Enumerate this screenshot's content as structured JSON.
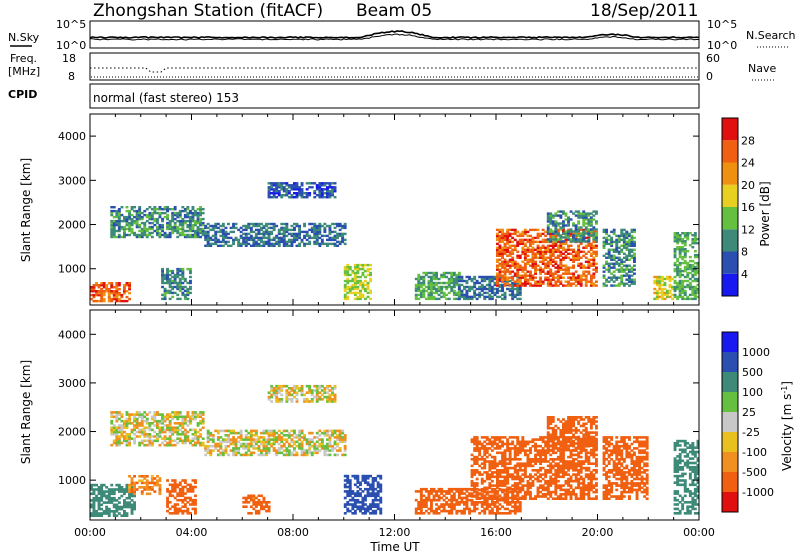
{
  "header": {
    "title": "Zhongshan Station (fitACF)",
    "beam": "Beam 05",
    "date": "18/Sep/2011"
  },
  "noise_panel": {
    "left_label": "N.Sky",
    "right_label": "N.Search",
    "left_ticks": [
      "10^5",
      "10^0"
    ],
    "right_ticks": [
      "10^5",
      "10^0"
    ]
  },
  "freq_panel": {
    "left_label_1": "Freq.",
    "left_label_2": "[MHz]",
    "right_label": "Nave",
    "left_ticks": [
      "18",
      "8"
    ],
    "right_ticks": [
      "60",
      "0"
    ]
  },
  "cpid": {
    "label": "CPID",
    "text": "normal (fast stereo) 153"
  },
  "colors": {
    "power": [
      "#1818f0",
      "#2a4fb0",
      "#3d8a78",
      "#66c040",
      "#e8d020",
      "#f09010",
      "#f06010",
      "#e01010"
    ],
    "velocity": [
      "#e01010",
      "#f06010",
      "#f09020",
      "#e8c020",
      "#c8c8c8",
      "#66c040",
      "#3d8a78",
      "#2a4fb0",
      "#1818f0"
    ]
  },
  "chart_data": [
    {
      "type": "heatmap",
      "name": "power",
      "xlabel": "Time UT",
      "ylabel": "Slant Range [km]",
      "x_range": [
        "00:00",
        "24:00"
      ],
      "ylim": [
        180,
        4500
      ],
      "yticks": [
        1000,
        2000,
        3000,
        4000
      ],
      "xticks": [
        "00:00",
        "04:00",
        "08:00",
        "12:00",
        "16:00",
        "20:00",
        "00:00"
      ],
      "colorbar": {
        "label": "Power [dB]",
        "ticks": [
          4,
          8,
          12,
          16,
          20,
          24,
          28
        ],
        "range": [
          0,
          32
        ]
      },
      "regions": [
        {
          "t0": 0.0,
          "t1": 1.6,
          "r0": 250,
          "r1": 700,
          "power": 26
        },
        {
          "t0": 0.8,
          "t1": 4.5,
          "r0": 1700,
          "r1": 2400,
          "power": 10
        },
        {
          "t0": 4.5,
          "t1": 10.0,
          "r0": 1500,
          "r1": 2000,
          "power": 8
        },
        {
          "t0": 7.0,
          "t1": 9.6,
          "r0": 2600,
          "r1": 2950,
          "power": 6
        },
        {
          "t0": 2.8,
          "t1": 4.0,
          "r0": 300,
          "r1": 1000,
          "power": 10
        },
        {
          "t0": 10.0,
          "t1": 11.0,
          "r0": 300,
          "r1": 1100,
          "power": 16
        },
        {
          "t0": 12.8,
          "t1": 14.5,
          "r0": 300,
          "r1": 900,
          "power": 12
        },
        {
          "t0": 14.5,
          "t1": 17.0,
          "r0": 300,
          "r1": 800,
          "power": 8
        },
        {
          "t0": 16.0,
          "t1": 20.0,
          "r0": 600,
          "r1": 1900,
          "power": 26
        },
        {
          "t0": 18.0,
          "t1": 20.0,
          "r0": 1600,
          "r1": 2300,
          "power": 10
        },
        {
          "t0": 20.2,
          "t1": 21.5,
          "r0": 600,
          "r1": 1900,
          "power": 10
        },
        {
          "t0": 22.2,
          "t1": 23.0,
          "r0": 300,
          "r1": 800,
          "power": 18
        },
        {
          "t0": 23.0,
          "t1": 24.0,
          "r0": 300,
          "r1": 1800,
          "power": 12
        }
      ]
    },
    {
      "type": "heatmap",
      "name": "velocity",
      "xlabel": "Time UT",
      "ylabel": "Slant Range [km]",
      "x_range": [
        "00:00",
        "24:00"
      ],
      "ylim": [
        180,
        4500
      ],
      "yticks": [
        1000,
        2000,
        3000,
        4000
      ],
      "xticks": [
        "00:00",
        "04:00",
        "08:00",
        "12:00",
        "16:00",
        "20:00",
        "00:00"
      ],
      "colorbar": {
        "label": "Velocity [m s",
        "label_exp": "-1",
        "label_end": "]",
        "ticks": [
          1000,
          500,
          100,
          25,
          -25,
          -100,
          -500,
          -1000
        ]
      },
      "regions": [
        {
          "t0": 0.0,
          "t1": 1.8,
          "r0": 250,
          "r1": 900,
          "velocity": 200
        },
        {
          "t0": 0.8,
          "t1": 4.5,
          "r0": 1700,
          "r1": 2400,
          "velocity": 0
        },
        {
          "t0": 4.5,
          "t1": 10.0,
          "r0": 1500,
          "r1": 2000,
          "velocity": 0
        },
        {
          "t0": 7.0,
          "t1": 9.6,
          "r0": 2600,
          "r1": 2950,
          "velocity": 0
        },
        {
          "t0": 1.5,
          "t1": 2.8,
          "r0": 700,
          "r1": 1100,
          "velocity": -80
        },
        {
          "t0": 3.0,
          "t1": 4.2,
          "r0": 300,
          "r1": 1000,
          "velocity": -200
        },
        {
          "t0": 6.0,
          "t1": 7.0,
          "r0": 300,
          "r1": 700,
          "velocity": -150
        },
        {
          "t0": 10.0,
          "t1": 11.4,
          "r0": 300,
          "r1": 1100,
          "velocity": 700
        },
        {
          "t0": 12.8,
          "t1": 17.0,
          "r0": 300,
          "r1": 800,
          "velocity": -300
        },
        {
          "t0": 15.0,
          "t1": 20.0,
          "r0": 600,
          "r1": 1900,
          "velocity": -250
        },
        {
          "t0": 18.0,
          "t1": 20.0,
          "r0": 1600,
          "r1": 2300,
          "velocity": -200
        },
        {
          "t0": 20.2,
          "t1": 22.0,
          "r0": 600,
          "r1": 1900,
          "velocity": -250
        },
        {
          "t0": 23.0,
          "t1": 24.0,
          "r0": 300,
          "r1": 1800,
          "velocity": 300
        }
      ]
    }
  ]
}
